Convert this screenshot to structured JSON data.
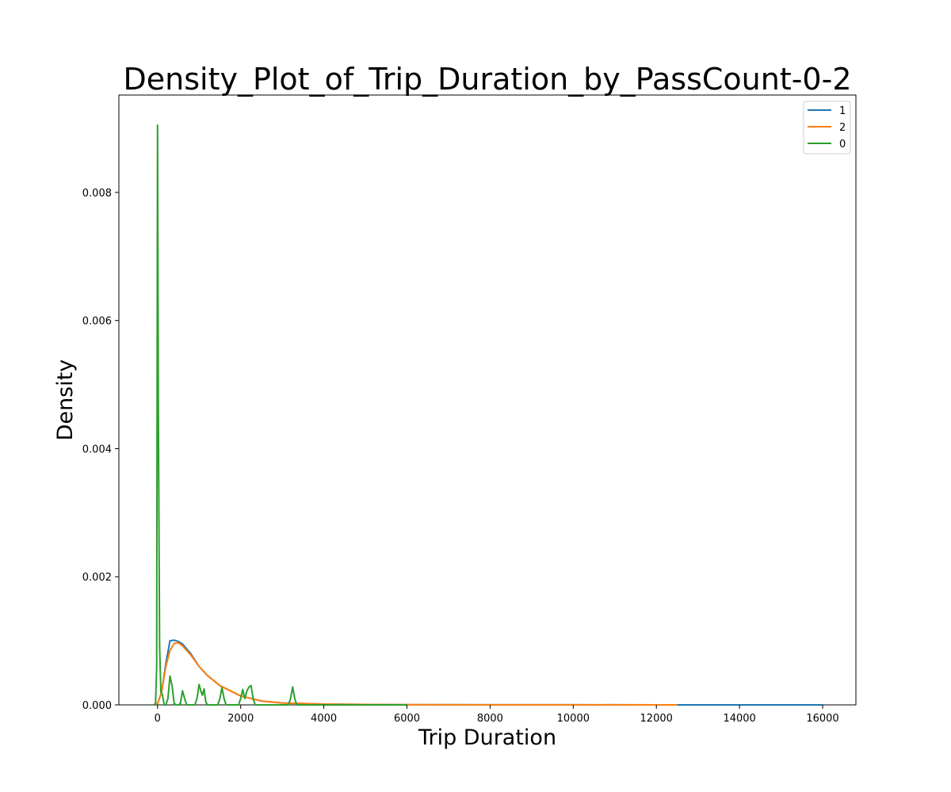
{
  "chart_data": {
    "type": "line",
    "title": "Density_Plot_of_Trip_Duration_by_PassCount-0-2",
    "xlabel": "Trip Duration",
    "ylabel": "Density",
    "xlim": [
      -930,
      16800
    ],
    "ylim": [
      0,
      0.00952
    ],
    "xticks": [
      0,
      2000,
      4000,
      6000,
      8000,
      10000,
      12000,
      14000,
      16000
    ],
    "xtick_labels": [
      "0",
      "2000",
      "4000",
      "6000",
      "8000",
      "10000",
      "12000",
      "14000",
      "16000"
    ],
    "yticks": [
      0.0,
      0.002,
      0.004,
      0.006,
      0.008
    ],
    "ytick_labels": [
      "0.000",
      "0.002",
      "0.004",
      "0.006",
      "0.008"
    ],
    "grid": false,
    "legend_position": "top-right",
    "series": [
      {
        "name": "1",
        "color": "#1f77b4",
        "x": [
          -100,
          0,
          100,
          200,
          300,
          400,
          500,
          600,
          800,
          1000,
          1200,
          1500,
          2000,
          2500,
          3000,
          4000,
          5000,
          6000,
          8000,
          10000,
          12000,
          14000,
          16000
        ],
        "y": [
          0.0,
          2e-05,
          0.0002,
          0.00065,
          0.001,
          0.00101,
          0.00099,
          0.00095,
          0.0008,
          0.0006,
          0.00046,
          0.0003,
          0.00014,
          6e-05,
          3e-05,
          1.2e-05,
          6e-06,
          3e-06,
          1.5e-06,
          1e-06,
          6e-07,
          3e-07,
          1e-07
        ]
      },
      {
        "name": "2",
        "color": "#ff7f0e",
        "x": [
          -100,
          0,
          100,
          200,
          300,
          400,
          500,
          600,
          800,
          1000,
          1200,
          1500,
          2000,
          2500,
          3000,
          4000,
          5000,
          6000,
          8000,
          10000,
          12500
        ],
        "y": [
          0.0,
          2e-05,
          0.0002,
          0.0006,
          0.00085,
          0.00096,
          0.00097,
          0.00092,
          0.00078,
          0.0006,
          0.00046,
          0.0003,
          0.00014,
          6e-05,
          3e-05,
          1.2e-05,
          6e-06,
          3e-06,
          1.5e-06,
          1e-06,
          0.0
        ]
      },
      {
        "name": "0",
        "color": "#2ca02c",
        "x": [
          -100,
          -50,
          -20,
          0,
          20,
          50,
          80,
          120,
          160,
          200,
          250,
          300,
          350,
          400,
          450,
          500,
          550,
          600,
          650,
          700,
          800,
          900,
          950,
          1000,
          1050,
          1080,
          1120,
          1160,
          1200,
          1450,
          1500,
          1550,
          1600,
          1650,
          1950,
          2000,
          2050,
          2100,
          2150,
          2200,
          2250,
          2300,
          2350,
          3150,
          3200,
          3250,
          3300,
          3350,
          4000,
          5000,
          6000
        ],
        "y": [
          0.0,
          0.0,
          0.0006,
          0.00905,
          0.0047,
          0.0009,
          0.0002,
          0.00015,
          0.0,
          0.0,
          0.0001,
          0.00045,
          0.0003,
          2e-05,
          0.0,
          0.0,
          2e-05,
          0.00022,
          0.0001,
          0.0,
          0.0,
          0.0,
          0.0001,
          0.00032,
          0.0002,
          0.00015,
          0.00025,
          5e-05,
          0.0,
          0.0,
          0.0001,
          0.00027,
          0.0001,
          0.0,
          0.0,
          0.0001,
          0.00024,
          0.0001,
          0.00022,
          0.00028,
          0.0003,
          0.0001,
          0.0,
          0.0,
          0.0001,
          0.00028,
          0.0001,
          0.0,
          0.0,
          0.0,
          0.0
        ]
      }
    ]
  }
}
